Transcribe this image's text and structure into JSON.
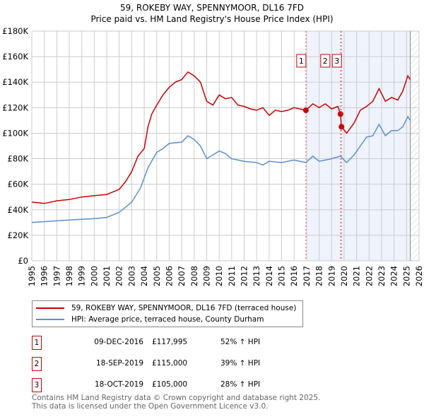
{
  "title": "59, ROKEBY WAY, SPENNYMOOR, DL16 7FD",
  "subtitle": "Price paid vs. HM Land Registry's House Price Index (HPI)",
  "chart_data": {
    "type": "line",
    "ylim": [
      0,
      180000
    ],
    "xlim": [
      1995,
      2026
    ],
    "yticks": [
      {
        "v": 0,
        "label": "£0"
      },
      {
        "v": 20000,
        "label": "£20K"
      },
      {
        "v": 40000,
        "label": "£40K"
      },
      {
        "v": 60000,
        "label": "£60K"
      },
      {
        "v": 80000,
        "label": "£80K"
      },
      {
        "v": 100000,
        "label": "£100K"
      },
      {
        "v": 120000,
        "label": "£120K"
      },
      {
        "v": 140000,
        "label": "£140K"
      },
      {
        "v": 160000,
        "label": "£160K"
      },
      {
        "v": 180000,
        "label": "£180K"
      }
    ],
    "xticks": [
      "1995",
      "1996",
      "1997",
      "1998",
      "1999",
      "2000",
      "2001",
      "2002",
      "2003",
      "2004",
      "2005",
      "2006",
      "2007",
      "2008",
      "2009",
      "2010",
      "2011",
      "2012",
      "2013",
      "2014",
      "2015",
      "2016",
      "2017",
      "2018",
      "2019",
      "2020",
      "2021",
      "2022",
      "2023",
      "2024",
      "2025",
      "2026"
    ],
    "series": [
      {
        "name": "59, ROKEBY WAY, SPENNYMOOR, DL16 7FD (terraced house)",
        "color": "#cc0000",
        "x": [
          1995,
          1996,
          1997,
          1998,
          1999,
          2000,
          2001,
          2002,
          2002.5,
          2003,
          2003.5,
          2004,
          2004.3,
          2004.6,
          2005,
          2005.5,
          2006,
          2006.5,
          2007,
          2007.5,
          2008,
          2008.5,
          2009,
          2009.5,
          2010,
          2010.5,
          2011,
          2011.5,
          2012,
          2012.5,
          2013,
          2013.5,
          2014,
          2014.5,
          2015,
          2015.5,
          2016,
          2016.94,
          2017.5,
          2018,
          2018.5,
          2019,
          2019.5,
          2019.71,
          2019.79,
          2020.2,
          2020.8,
          2021.3,
          2021.8,
          2022.3,
          2022.8,
          2023.3,
          2023.8,
          2024.3,
          2024.7,
          2025.1,
          2025.3
        ],
        "y": [
          46000,
          45000,
          47000,
          48000,
          50000,
          51000,
          52000,
          56000,
          62000,
          70000,
          82000,
          88000,
          105000,
          115000,
          122000,
          130000,
          136000,
          140000,
          142000,
          148000,
          145000,
          140000,
          125000,
          122000,
          130000,
          127000,
          128000,
          122000,
          121000,
          119000,
          118000,
          120000,
          114000,
          118000,
          117000,
          118000,
          120000,
          117995,
          123000,
          120000,
          123000,
          119000,
          121000,
          115000,
          105000,
          100000,
          108000,
          118000,
          121000,
          125000,
          135000,
          125000,
          128000,
          126000,
          133000,
          145000,
          142000
        ]
      },
      {
        "name": "HPI: Average price, terraced house, County Durham",
        "color": "#5b8fd0",
        "x": [
          1995,
          1998,
          2000,
          2001,
          2002,
          2003,
          2003.7,
          2004.3,
          2005,
          2005.5,
          2006,
          2007,
          2007.5,
          2008,
          2008.5,
          2009,
          2010,
          2010.5,
          2011,
          2012,
          2013,
          2013.5,
          2014,
          2015,
          2016,
          2016.94,
          2017.5,
          2018,
          2019,
          2019.7,
          2020.2,
          2020.8,
          2021.3,
          2021.8,
          2022.3,
          2022.8,
          2023.3,
          2023.8,
          2024.3,
          2024.7,
          2025.1,
          2025.3
        ],
        "y": [
          30000,
          32000,
          33000,
          34000,
          38000,
          46000,
          57000,
          73000,
          85000,
          88000,
          92000,
          93000,
          98000,
          95000,
          90000,
          80000,
          86000,
          84000,
          80000,
          78000,
          77000,
          75000,
          78000,
          77000,
          79000,
          77000,
          82000,
          78000,
          80000,
          82000,
          77000,
          83000,
          90000,
          97000,
          98000,
          107000,
          98000,
          102000,
          102000,
          105000,
          113000,
          110000
        ]
      }
    ],
    "sales": [
      {
        "n": "1",
        "x": 2016.94,
        "y": 117995
      },
      {
        "n": "2",
        "x": 2019.71,
        "y": 115000
      },
      {
        "n": "3",
        "x": 2019.79,
        "y": 105000
      }
    ],
    "shade_from": 2016.94,
    "hatch_from": 2025.3
  },
  "legend": [
    "59, ROKEBY WAY, SPENNYMOOR, DL16 7FD (terraced house)",
    "HPI: Average price, terraced house, County Durham"
  ],
  "transactions": [
    {
      "n": "1",
      "date": "09-DEC-2016",
      "price": "£117,995",
      "hpi": "52% ↑ HPI"
    },
    {
      "n": "2",
      "date": "18-SEP-2019",
      "price": "£115,000",
      "hpi": "39% ↑ HPI"
    },
    {
      "n": "3",
      "date": "18-OCT-2019",
      "price": "£105,000",
      "hpi": "28% ↑ HPI"
    }
  ],
  "footer": [
    "Contains HM Land Registry data © Crown copyright and database right 2025.",
    "This data is licensed under the Open Government Licence v3.0."
  ]
}
